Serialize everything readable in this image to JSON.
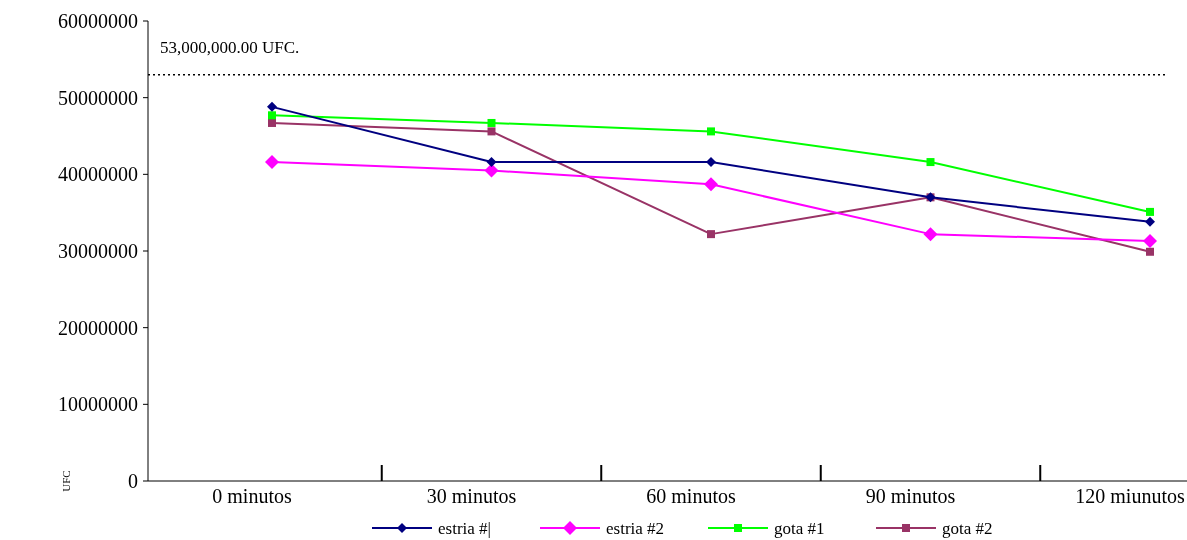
{
  "chart_data": {
    "type": "line",
    "categories": [
      "0 minutos",
      "30 minutos",
      "60 minutos",
      "90 minutos",
      "120 miunutos"
    ],
    "ylabel": "UFC",
    "ylim": [
      0,
      60000000
    ],
    "yticks": [
      0,
      10000000,
      20000000,
      30000000,
      40000000,
      50000000,
      60000000
    ],
    "series": [
      {
        "name": "estria #|",
        "color": "#000080",
        "marker": "diamond",
        "values": [
          48800000,
          41600000,
          41600000,
          37000000,
          33800000
        ]
      },
      {
        "name": "estria #2",
        "color": "#ff00ff",
        "marker": "diamond",
        "values": [
          41600000,
          40500000,
          38700000,
          32200000,
          31300000
        ]
      },
      {
        "name": "gota #1",
        "color": "#00ff00",
        "marker": "square",
        "values": [
          47700000,
          46700000,
          45600000,
          41600000,
          35100000
        ]
      },
      {
        "name": "gota #2",
        "color": "#993366",
        "marker": "square",
        "values": [
          46700000,
          45600000,
          32200000,
          37000000,
          29900000
        ]
      }
    ],
    "ref_lines": [
      {
        "axis": "y",
        "value": 53000000,
        "label": "53,000,000.00 UFC.",
        "color": "#000000",
        "line_style": "dotted"
      }
    ],
    "legend": "bottom",
    "grid": false
  }
}
